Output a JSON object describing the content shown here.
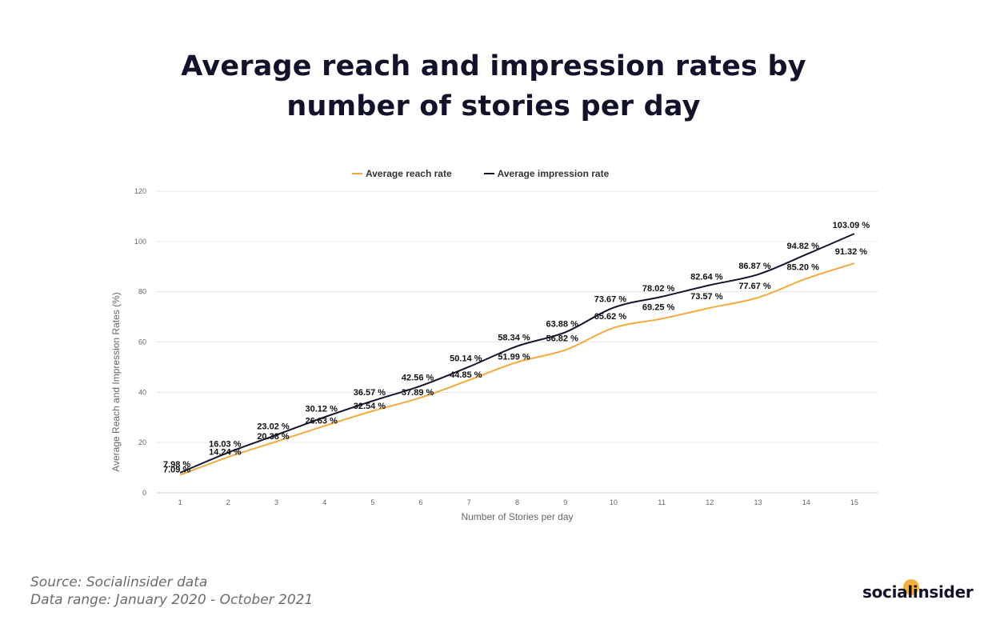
{
  "title_line1": "Average reach and impression rates by",
  "title_line2": "number of stories per day",
  "footer": {
    "source": "Source: Socialinsider data",
    "range": "Data range: January 2020 - October 2021"
  },
  "brand": "socialinsider",
  "colors": {
    "reach": "#f5a93b",
    "impression": "#14142e",
    "grid": "#e6e6e6"
  },
  "chart_data": {
    "type": "line",
    "x": [
      1,
      2,
      3,
      4,
      5,
      6,
      7,
      8,
      9,
      10,
      11,
      12,
      13,
      14,
      15
    ],
    "xlabel": "Number of Stories per day",
    "ylabel": "Average Reach and Impression Rates (%)",
    "ylim": [
      0,
      120
    ],
    "yticks": [
      0,
      20,
      40,
      60,
      80,
      100,
      120
    ],
    "grid": true,
    "legend_position": "top",
    "series": [
      {
        "name": "Average reach rate",
        "color": "#f5a93b",
        "values": [
          7.09,
          14.24,
          20.38,
          26.63,
          32.54,
          37.89,
          44.85,
          51.99,
          56.82,
          65.62,
          69.25,
          73.57,
          77.67,
          85.2,
          91.32
        ],
        "labels": [
          "7.09 %",
          "14.24 %",
          "20.38 %",
          "26.63 %",
          "32.54 %",
          "37.89 %",
          "44.85 %",
          "51.99 %",
          "56.82 %",
          "65.62 %",
          "69.25 %",
          "73.57 %",
          "77.67 %",
          "85.20 %",
          "91.32 %"
        ]
      },
      {
        "name": "Average impression rate",
        "color": "#14142e",
        "values": [
          7.98,
          16.03,
          23.02,
          30.12,
          36.57,
          42.56,
          50.14,
          58.34,
          63.88,
          73.67,
          78.02,
          82.64,
          86.87,
          94.82,
          103.09
        ],
        "labels": [
          "7.98 %",
          "16.03 %",
          "23.02 %",
          "30.12 %",
          "36.57 %",
          "42.56 %",
          "50.14 %",
          "58.34 %",
          "63.88 %",
          "73.67 %",
          "78.02 %",
          "82.64 %",
          "86.87 %",
          "94.82 %",
          "103.09 %"
        ]
      }
    ]
  }
}
